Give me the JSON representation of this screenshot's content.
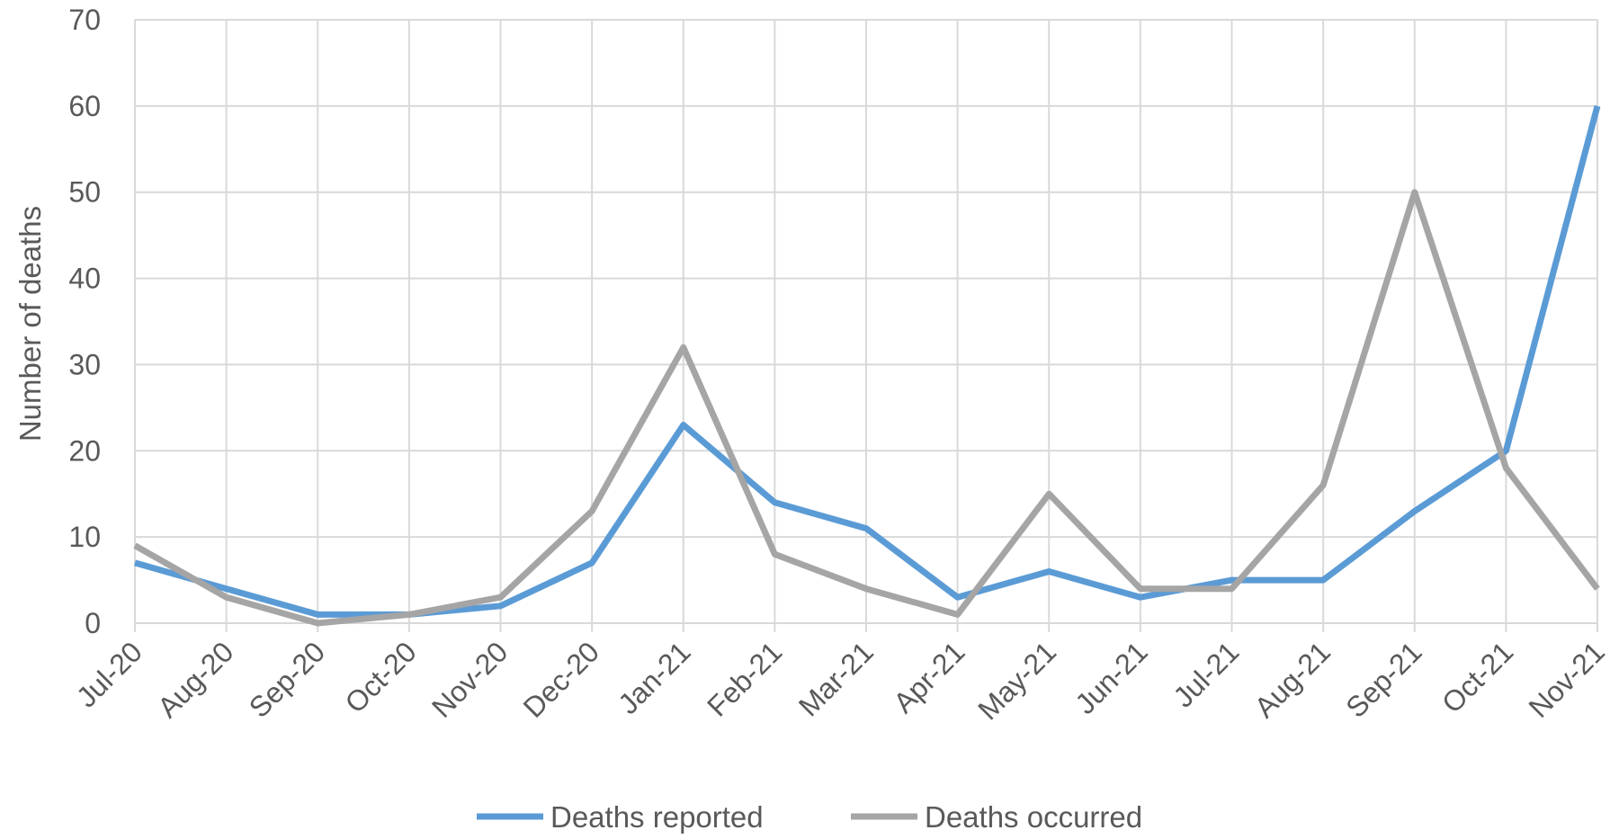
{
  "chart_data": {
    "type": "line",
    "title": "",
    "xlabel": "",
    "ylabel": "Number of deaths",
    "ylim": [
      0,
      70
    ],
    "yticks": [
      0,
      10,
      20,
      30,
      40,
      50,
      60,
      70
    ],
    "grid": true,
    "legend_position": "bottom",
    "categories": [
      "Jul-20",
      "Aug-20",
      "Sep-20",
      "Oct-20",
      "Nov-20",
      "Dec-20",
      "Jan-21",
      "Feb-21",
      "Mar-21",
      "Apr-21",
      "May-21",
      "Jun-21",
      "Jul-21",
      "Aug-21",
      "Sep-21",
      "Oct-21",
      "Nov-21"
    ],
    "series": [
      {
        "name": "Deaths reported",
        "color": "#5b9bd5",
        "values": [
          7,
          4,
          1,
          1,
          2,
          7,
          23,
          14,
          11,
          3,
          6,
          3,
          5,
          5,
          13,
          20,
          60
        ]
      },
      {
        "name": "Deaths occurred",
        "color": "#a5a5a5",
        "values": [
          9,
          3,
          0,
          1,
          3,
          13,
          32,
          8,
          4,
          1,
          15,
          4,
          4,
          16,
          50,
          18,
          4
        ]
      }
    ]
  }
}
